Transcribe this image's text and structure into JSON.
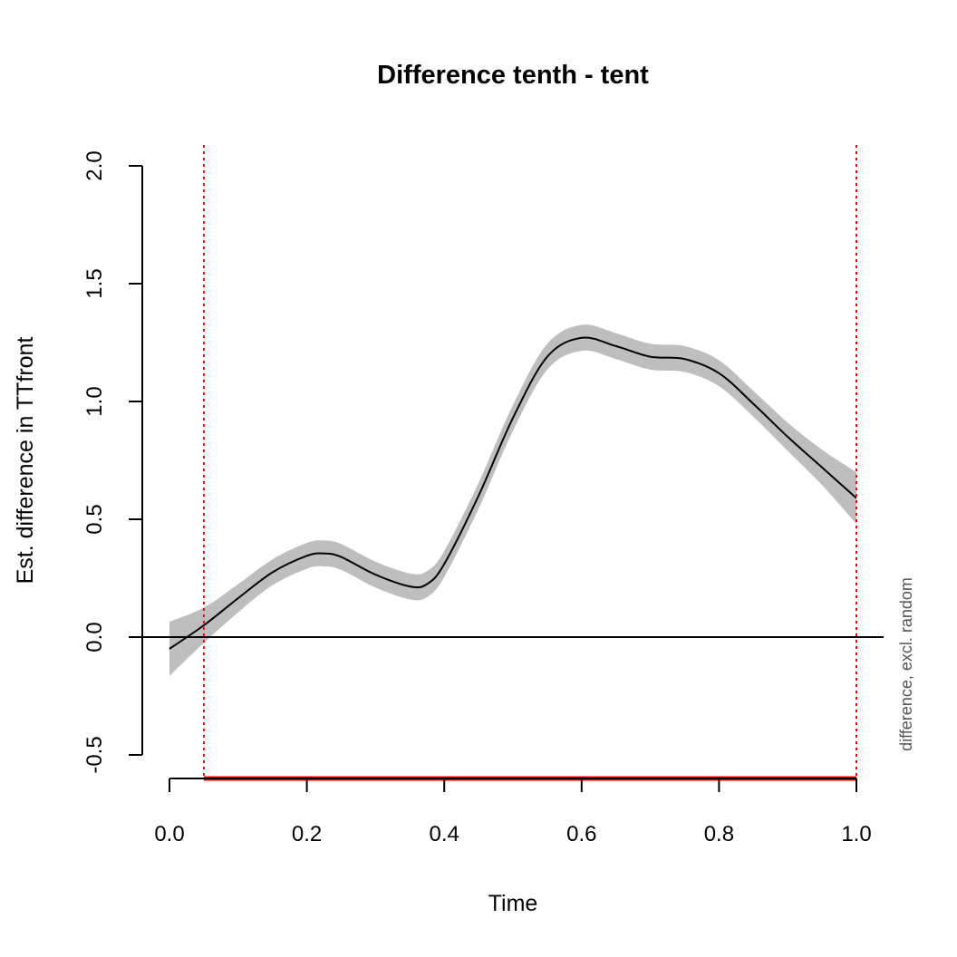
{
  "chart_data": {
    "type": "line",
    "title": "Difference tenth - tent",
    "xlabel": "Time",
    "ylabel": "Est. difference in TTfront",
    "side_label": "difference, excl. random",
    "xlim": [
      0,
      1
    ],
    "ylim": [
      -0.5,
      2.0
    ],
    "x_ticks": [
      "0.0",
      "0.2",
      "0.4",
      "0.6",
      "0.8",
      "1.0"
    ],
    "x_tick_values": [
      0,
      0.2,
      0.4,
      0.6,
      0.8,
      1.0
    ],
    "y_ticks": [
      "-0.5",
      "0.0",
      "0.5",
      "1.0",
      "1.5",
      "2.0"
    ],
    "y_tick_values": [
      -0.5,
      0,
      0.5,
      1.0,
      1.5,
      2.0
    ],
    "grid": false,
    "reference_line_y": 0,
    "significant_region": [
      0.05,
      1.0
    ],
    "series": [
      {
        "name": "difference",
        "x": [
          0,
          0.05,
          0.1,
          0.15,
          0.2,
          0.225,
          0.25,
          0.3,
          0.35,
          0.375,
          0.4,
          0.45,
          0.5,
          0.55,
          0.6,
          0.65,
          0.7,
          0.75,
          0.8,
          0.85,
          0.9,
          0.95,
          1.0
        ],
        "y": [
          -0.05,
          0.05,
          0.165,
          0.275,
          0.345,
          0.355,
          0.34,
          0.265,
          0.215,
          0.225,
          0.31,
          0.6,
          0.93,
          1.19,
          1.27,
          1.235,
          1.19,
          1.18,
          1.12,
          0.99,
          0.85,
          0.72,
          0.59
        ],
        "ci": [
          0.115,
          0.075,
          0.06,
          0.055,
          0.055,
          0.055,
          0.055,
          0.055,
          0.055,
          0.055,
          0.055,
          0.055,
          0.055,
          0.055,
          0.055,
          0.055,
          0.055,
          0.055,
          0.055,
          0.055,
          0.06,
          0.075,
          0.11
        ]
      }
    ],
    "colors": {
      "line": "#000000",
      "band": "#bebebe",
      "marker": "#ff0000"
    }
  }
}
